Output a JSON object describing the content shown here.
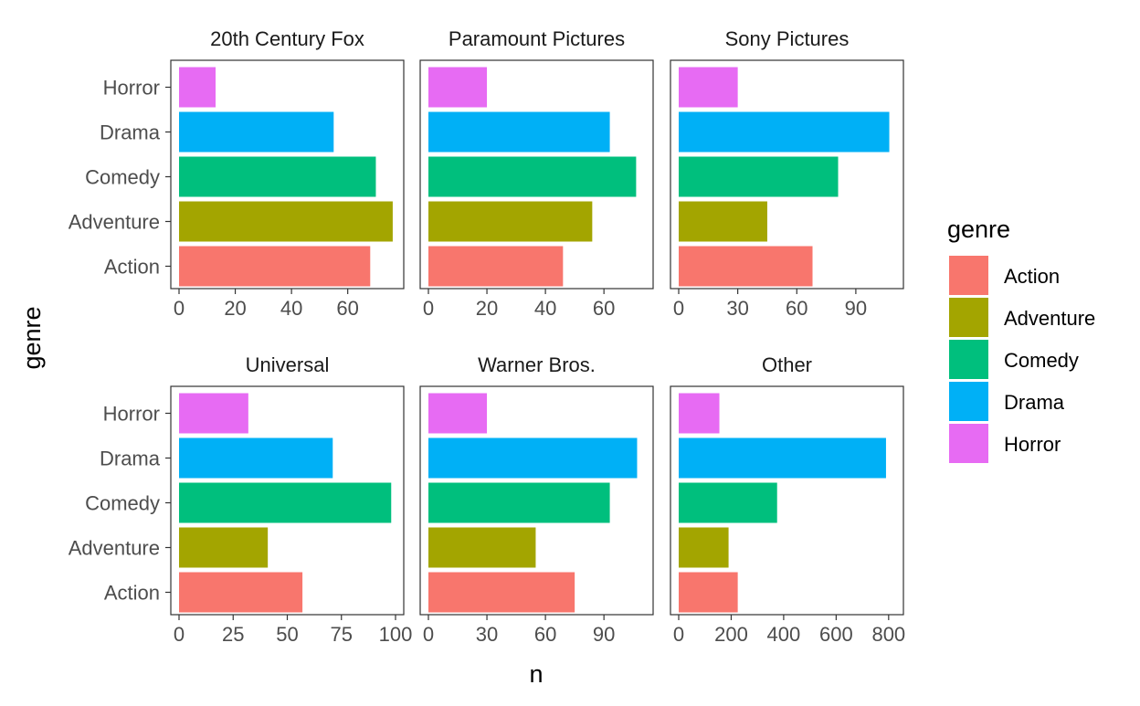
{
  "chart_data": {
    "type": "bar",
    "orientation": "horizontal",
    "facet": "studio",
    "xlabel": "n",
    "ylabel": "genre",
    "categories": [
      "Action",
      "Adventure",
      "Comedy",
      "Drama",
      "Horror"
    ],
    "legend": {
      "title": "genre",
      "placement": "right",
      "entries": [
        "Action",
        "Adventure",
        "Comedy",
        "Drama",
        "Horror"
      ]
    },
    "colors": {
      "Action": "#F8766D",
      "Adventure": "#A3A500",
      "Comedy": "#00BF7D",
      "Drama": "#00B0F6",
      "Horror": "#E76BF3"
    },
    "panels": [
      {
        "title": "20th Century Fox",
        "xlim": [
          0,
          77
        ],
        "xticks": [
          0,
          20,
          40,
          60
        ],
        "values": {
          "Action": 68,
          "Adventure": 76,
          "Comedy": 70,
          "Drama": 55,
          "Horror": 13
        }
      },
      {
        "title": "Paramount Pictures",
        "xlim": [
          0,
          74
        ],
        "xticks": [
          0,
          20,
          40,
          60
        ],
        "values": {
          "Action": 46,
          "Adventure": 56,
          "Comedy": 71,
          "Drama": 62,
          "Horror": 20
        }
      },
      {
        "title": "Sony Pictures",
        "xlim": [
          0,
          110
        ],
        "xticks": [
          0,
          30,
          60,
          90
        ],
        "values": {
          "Action": 68,
          "Adventure": 45,
          "Comedy": 81,
          "Drama": 107,
          "Horror": 30
        }
      },
      {
        "title": "Universal",
        "xlim": [
          0,
          100
        ],
        "xticks": [
          0,
          25,
          50,
          75,
          100
        ],
        "values": {
          "Action": 57,
          "Adventure": 41,
          "Comedy": 98,
          "Drama": 71,
          "Horror": 32
        }
      },
      {
        "title": "Warner Bros.",
        "xlim": [
          0,
          111
        ],
        "xticks": [
          0,
          30,
          60,
          90
        ],
        "values": {
          "Action": 75,
          "Adventure": 55,
          "Comedy": 93,
          "Drama": 107,
          "Horror": 30
        }
      },
      {
        "title": "Other",
        "xlim": [
          0,
          825
        ],
        "xticks": [
          0,
          200,
          400,
          600,
          800
        ],
        "values": {
          "Action": 225,
          "Adventure": 190,
          "Comedy": 375,
          "Drama": 790,
          "Horror": 155
        }
      }
    ]
  }
}
